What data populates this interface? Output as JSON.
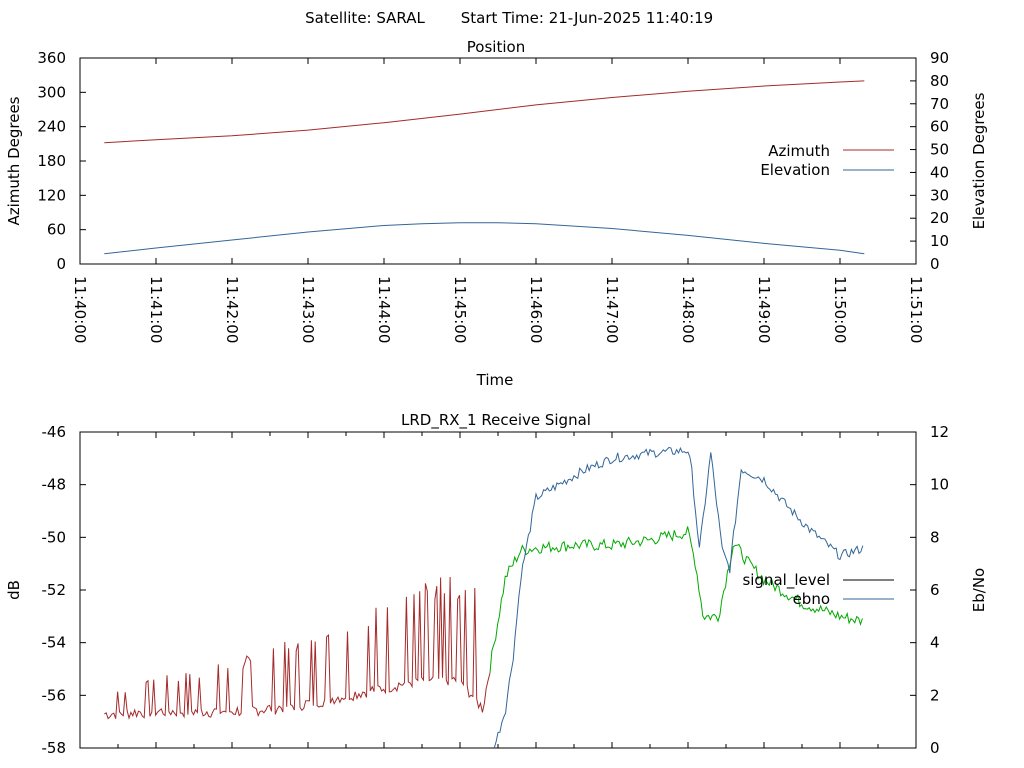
{
  "header": {
    "satellite_label": "Satellite: SARAL",
    "start_time_label": "Start Time: 21-Jun-2025 11:40:19"
  },
  "chart_data": [
    {
      "type": "line",
      "title": "Position",
      "xlabel": "Time",
      "ylabel": "Azimuth Degrees",
      "ylabel_right": "Elevation Degrees",
      "x_ticks": [
        "11:40:00",
        "11:41:00",
        "11:42:00",
        "11:43:00",
        "11:44:00",
        "11:45:00",
        "11:46:00",
        "11:47:00",
        "11:48:00",
        "11:49:00",
        "11:50:00",
        "11:51:00"
      ],
      "xlim_minutes": [
        0,
        11
      ],
      "ylim": [
        0,
        360
      ],
      "ylim_right": [
        0,
        90
      ],
      "y_ticks": [
        "0",
        "60",
        "120",
        "180",
        "240",
        "300",
        "360"
      ],
      "y_ticks_right": [
        "0",
        "10",
        "20",
        "30",
        "40",
        "50",
        "60",
        "70",
        "80",
        "90"
      ],
      "legend_position": "right",
      "grid": false,
      "series": [
        {
          "name": "Azimuth",
          "axis": "left",
          "color": "#a52a2a",
          "x_minutes": [
            0.32,
            1,
            2,
            3,
            4,
            5,
            6,
            7,
            8,
            9,
            10,
            10.32
          ],
          "values": [
            212,
            217,
            224,
            234,
            247,
            262,
            278,
            291,
            302,
            311,
            318,
            320
          ]
        },
        {
          "name": "Elevation",
          "axis": "right",
          "color": "#336699",
          "x_minutes": [
            0.32,
            1,
            2,
            3,
            4,
            4.5,
            5,
            5.5,
            6,
            7,
            8,
            9,
            10,
            10.32
          ],
          "values": [
            4.5,
            7,
            10.5,
            14,
            16.8,
            17.6,
            18,
            18,
            17.6,
            15.5,
            12.5,
            9,
            6,
            4.5
          ]
        }
      ]
    },
    {
      "type": "line",
      "title": "LRD_RX_1 Receive Signal",
      "ylabel": "dB",
      "ylabel_right": "Eb/No",
      "xlim_minutes": [
        0,
        11
      ],
      "ylim": [
        -58,
        -46
      ],
      "ylim_right": [
        0,
        12
      ],
      "y_ticks": [
        "-58",
        "-56",
        "-54",
        "-52",
        "-50",
        "-48",
        "-46"
      ],
      "y_ticks_right": [
        "0",
        "2",
        "4",
        "6",
        "8",
        "10",
        "12"
      ],
      "legend_position": "right",
      "grid": false,
      "series": [
        {
          "name": "signal_level",
          "axis": "left",
          "color": "#a52a2a",
          "color_after_lock": "#00aa00",
          "lock_minute": 5.4,
          "x_minutes": [
            0.32,
            1,
            1.5,
            2,
            2.5,
            3,
            3.5,
            4,
            4.5,
            5,
            5.3,
            5.45,
            5.6,
            5.8,
            6,
            6.5,
            7,
            7.5,
            8,
            8.1,
            8.2,
            8.4,
            8.6,
            8.8,
            9,
            9.5,
            10,
            10.32
          ],
          "values": [
            -56.7,
            -56.6,
            -56.6,
            -56.6,
            -56.5,
            -56.3,
            -56.0,
            -55.7,
            -55.4,
            -55.4,
            -56.5,
            -54.0,
            -51.5,
            -50.5,
            -50.4,
            -50.3,
            -50.3,
            -50.1,
            -49.8,
            -51.0,
            -53.0,
            -53.0,
            -50.2,
            -51.0,
            -51.6,
            -52.5,
            -53.0,
            -53.2
          ]
        },
        {
          "name": "ebno",
          "axis": "right",
          "color": "#336699",
          "x_minutes": [
            5.45,
            5.5,
            5.6,
            5.7,
            5.8,
            6,
            6.3,
            6.6,
            7,
            7.5,
            8,
            8.05,
            8.15,
            8.3,
            8.45,
            8.55,
            8.7,
            9,
            9.3,
            9.6,
            10,
            10.32
          ],
          "values": [
            0,
            0.5,
            1.5,
            3.5,
            6.5,
            9.5,
            10.0,
            10.5,
            11.0,
            11.2,
            11.3,
            10.5,
            7.5,
            11.2,
            7.5,
            6.8,
            10.6,
            10.2,
            9.2,
            8.3,
            7.3,
            7.6
          ]
        }
      ]
    }
  ]
}
